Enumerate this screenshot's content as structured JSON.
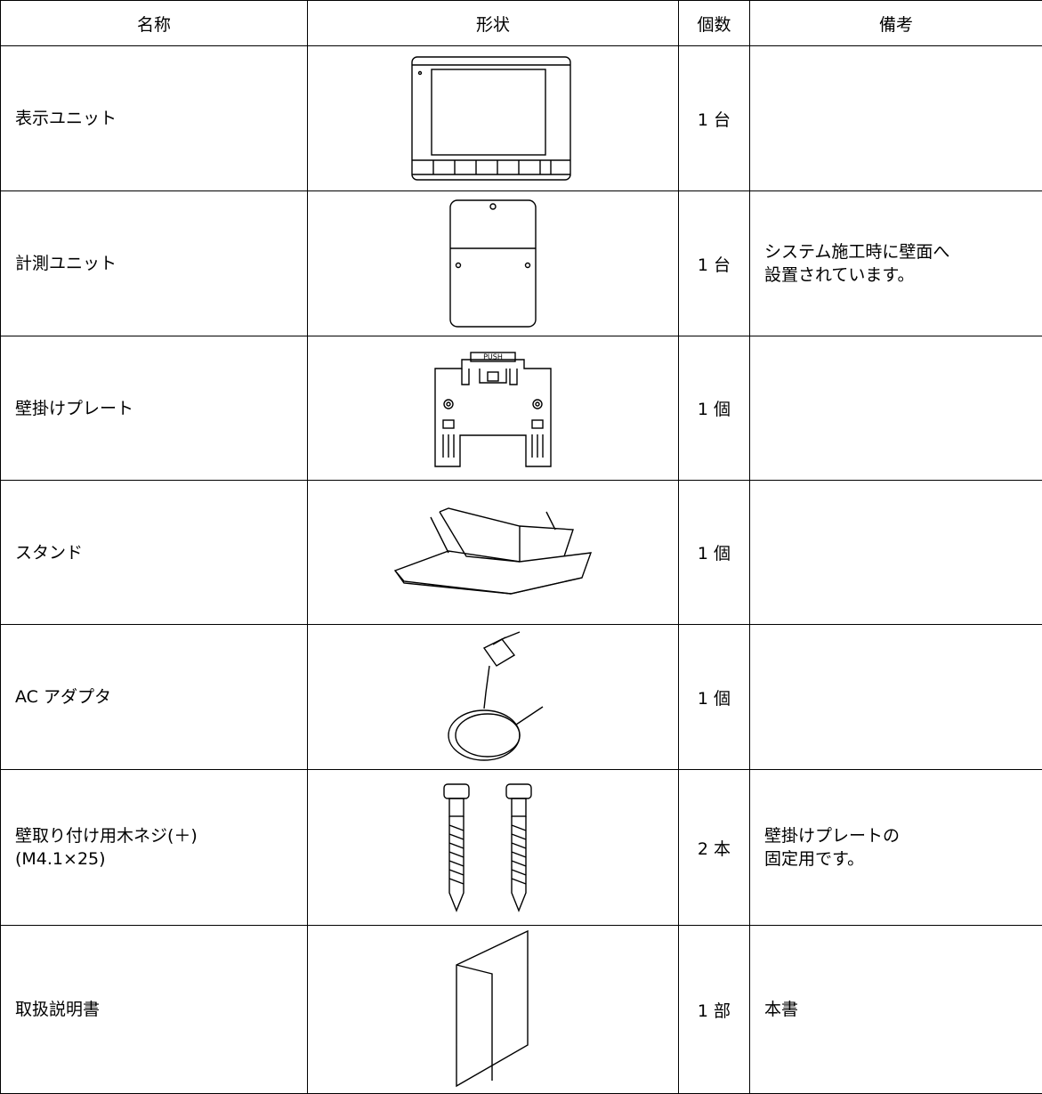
{
  "table": {
    "header": [
      "名称",
      "形状",
      "個数",
      "備考"
    ],
    "rows": [
      {
        "name": [
          "表示ユニット"
        ],
        "count": "1 台",
        "note": []
      },
      {
        "name": [
          "計測ユニット"
        ],
        "count": "1 台",
        "note": [
          "システム施工時に壁面へ",
          "設置されています。"
        ]
      },
      {
        "name": [
          "壁掛けプレート"
        ],
        "count": "1 個",
        "note": [],
        "label": "PUSH"
      },
      {
        "name": [
          "スタンド"
        ],
        "count": "1 個",
        "note": []
      },
      {
        "name": [
          "AC アダプタ"
        ],
        "count": "1 個",
        "note": []
      },
      {
        "name": [
          "壁取り付け用木ネジ(＋)",
          "(M4.1×25)"
        ],
        "count": "2 本",
        "note": [
          "壁掛けプレートの",
          "固定用です。"
        ]
      },
      {
        "name": [
          "取扱説明書"
        ],
        "count": "1 部",
        "note": [
          "本書"
        ]
      }
    ]
  }
}
